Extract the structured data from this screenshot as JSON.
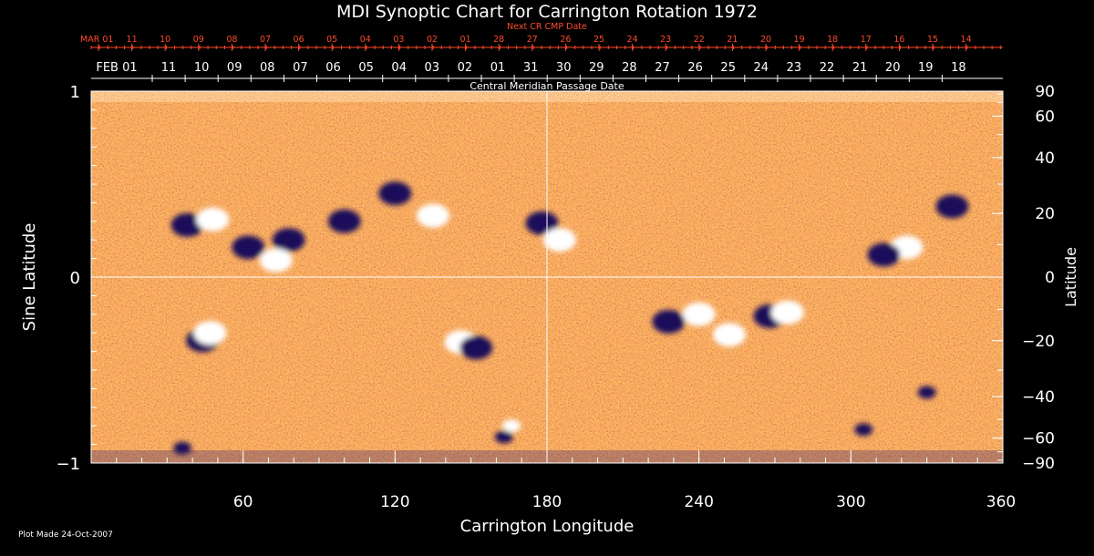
{
  "title": "MDI Synoptic Chart for Carrington Rotation 1972",
  "footer": "Plot Made 24-Oct-2007",
  "top_axis": {
    "label": "Next CR CMP Date",
    "ticks": [
      "MAR 01",
      "11",
      "10",
      "09",
      "08",
      "07",
      "06",
      "05",
      "04",
      "03",
      "02",
      "01",
      "28",
      "27",
      "26",
      "25",
      "24",
      "23",
      "22",
      "21",
      "20",
      "19",
      "18",
      "17",
      "16",
      "15",
      "14"
    ]
  },
  "date_axis": {
    "label": "Central Meridian Passage Date",
    "ticks": [
      "FEB 01",
      "11",
      "10",
      "09",
      "08",
      "07",
      "06",
      "05",
      "04",
      "03",
      "02",
      "01",
      "31",
      "30",
      "29",
      "28",
      "27",
      "26",
      "25",
      "24",
      "23",
      "22",
      "21",
      "20",
      "19",
      "18"
    ]
  },
  "chart_data": {
    "type": "heatmap",
    "title": "MDI Synoptic Chart for Carrington Rotation 1972",
    "xlabel": "Carrington Longitude",
    "ylabel": "Sine Latitude",
    "y2label": "Latitude",
    "xlim": [
      0,
      360
    ],
    "ylim": [
      -1,
      1
    ],
    "x_ticks": [
      60,
      120,
      180,
      240,
      300,
      360
    ],
    "y_ticks": [
      {
        "value": 1,
        "label": "1"
      },
      {
        "value": 0,
        "label": "0"
      },
      {
        "value": -1,
        "label": "−1"
      }
    ],
    "y2_ticks": [
      90,
      60,
      40,
      20,
      0,
      -20,
      -40,
      -60,
      -90
    ],
    "y2_tick_labels": [
      "90",
      "60",
      "40",
      "20",
      "0",
      "−20",
      "−40",
      "−60",
      "−90"
    ],
    "grid": "crosshair at longitude 180 and latitude 0",
    "colors": {
      "background": "#000000",
      "field_base": "#e8641e",
      "positive": "#ffffff",
      "negative": "#1a0c5a",
      "axis_red": "#ff4a2a"
    },
    "active_regions": [
      {
        "lon": 120,
        "sinlat": 0.45,
        "polarity": "negative"
      },
      {
        "lon": 135,
        "sinlat": 0.33,
        "polarity": "positive"
      },
      {
        "lon": 100,
        "sinlat": 0.3,
        "polarity": "negative"
      },
      {
        "lon": 78,
        "sinlat": 0.2,
        "polarity": "negative"
      },
      {
        "lon": 62,
        "sinlat": 0.16,
        "polarity": "negative"
      },
      {
        "lon": 73,
        "sinlat": 0.09,
        "polarity": "positive"
      },
      {
        "lon": 38,
        "sinlat": 0.28,
        "polarity": "negative"
      },
      {
        "lon": 48,
        "sinlat": 0.31,
        "polarity": "positive"
      },
      {
        "lon": 178,
        "sinlat": 0.29,
        "polarity": "negative"
      },
      {
        "lon": 185,
        "sinlat": 0.2,
        "polarity": "positive"
      },
      {
        "lon": 340,
        "sinlat": 0.38,
        "polarity": "negative"
      },
      {
        "lon": 322,
        "sinlat": 0.16,
        "polarity": "positive"
      },
      {
        "lon": 313,
        "sinlat": 0.12,
        "polarity": "negative"
      },
      {
        "lon": 240,
        "sinlat": -0.2,
        "polarity": "positive"
      },
      {
        "lon": 228,
        "sinlat": -0.24,
        "polarity": "negative"
      },
      {
        "lon": 252,
        "sinlat": -0.31,
        "polarity": "positive"
      },
      {
        "lon": 268,
        "sinlat": -0.21,
        "polarity": "negative"
      },
      {
        "lon": 275,
        "sinlat": -0.19,
        "polarity": "positive"
      },
      {
        "lon": 44,
        "sinlat": -0.34,
        "polarity": "negative"
      },
      {
        "lon": 47,
        "sinlat": -0.3,
        "polarity": "positive"
      },
      {
        "lon": 146,
        "sinlat": -0.35,
        "polarity": "positive"
      },
      {
        "lon": 152,
        "sinlat": -0.38,
        "polarity": "negative"
      },
      {
        "lon": 163,
        "sinlat": -0.86,
        "polarity": "negative"
      },
      {
        "lon": 166,
        "sinlat": -0.8,
        "polarity": "positive"
      },
      {
        "lon": 36,
        "sinlat": -0.92,
        "polarity": "negative"
      },
      {
        "lon": 330,
        "sinlat": -0.62,
        "polarity": "negative"
      },
      {
        "lon": 305,
        "sinlat": -0.82,
        "polarity": "negative"
      }
    ]
  }
}
